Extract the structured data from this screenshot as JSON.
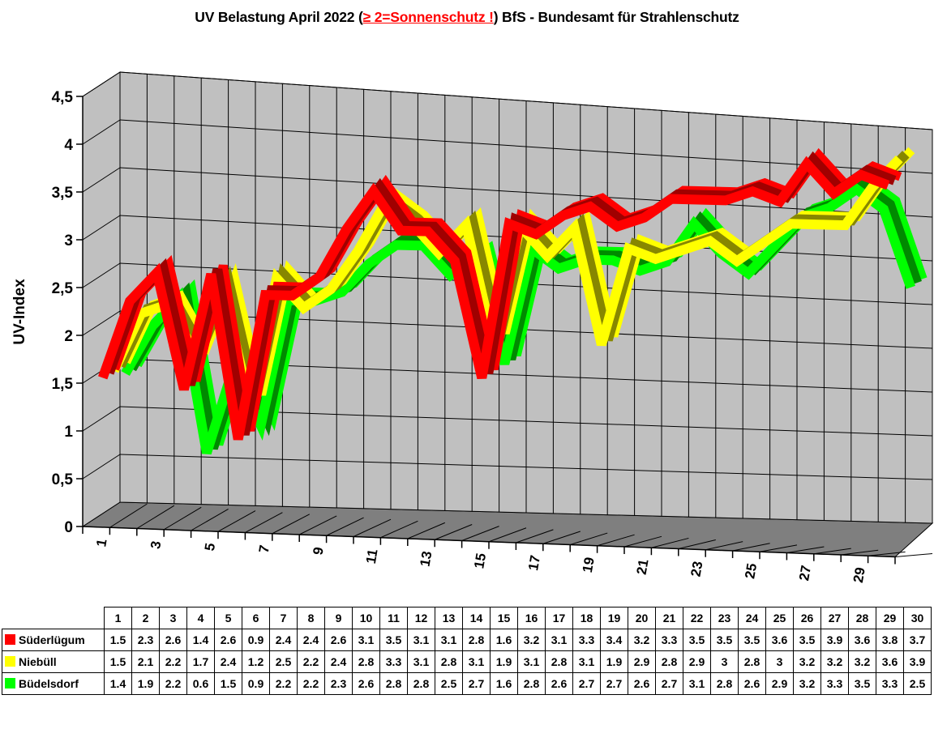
{
  "title": {
    "part1": "UV Belastung April 2022 (",
    "part2": "≥ 2=Sonnenschutz !",
    "part3": ") BfS - Bundesamt für Strahlenschutz",
    "highlight_color": "#FF0000"
  },
  "chart_data": {
    "type": "line3d",
    "title": "UV Belastung April 2022",
    "ylabel": "UV-Index",
    "xlabel": "",
    "ylim": [
      0,
      4.5
    ],
    "ytick_step": 0.5,
    "ytick_labels": [
      "0",
      "0,5",
      "1",
      "1,5",
      "2",
      "2,5",
      "3",
      "3,5",
      "4",
      "4,5"
    ],
    "xtick_labels": [
      "1",
      "3",
      "5",
      "7",
      "9",
      "11",
      "13",
      "15",
      "17",
      "19",
      "21",
      "23",
      "25",
      "27",
      "29"
    ],
    "categories": [
      1,
      2,
      3,
      4,
      5,
      6,
      7,
      8,
      9,
      10,
      11,
      12,
      13,
      14,
      15,
      16,
      17,
      18,
      19,
      20,
      21,
      22,
      23,
      24,
      25,
      26,
      27,
      28,
      29,
      30
    ],
    "grid": true,
    "legend_position": "none",
    "wall_color": "#C0C0C0",
    "floor_color": "#7F7F7F",
    "grid_color": "#000000",
    "series": [
      {
        "name": "Süderlügum",
        "color": "#FF0000",
        "dark_color": "#A00000",
        "values": [
          1.5,
          2.3,
          2.6,
          1.4,
          2.6,
          0.9,
          2.4,
          2.4,
          2.6,
          3.1,
          3.5,
          3.1,
          3.1,
          2.8,
          1.6,
          3.2,
          3.1,
          3.3,
          3.4,
          3.2,
          3.3,
          3.5,
          3.5,
          3.5,
          3.6,
          3.5,
          3.9,
          3.6,
          3.8,
          3.7
        ]
      },
      {
        "name": "Niebüll",
        "color": "#FFFF00",
        "dark_color": "#878700",
        "values": [
          1.5,
          2.1,
          2.2,
          1.7,
          2.4,
          1.2,
          2.5,
          2.2,
          2.4,
          2.8,
          3.3,
          3.1,
          2.8,
          3.1,
          1.9,
          3.1,
          2.8,
          3.1,
          1.9,
          2.9,
          2.8,
          2.9,
          3.0,
          2.8,
          3.0,
          3.2,
          3.2,
          3.2,
          3.6,
          3.9
        ]
      },
      {
        "name": "Büdelsdorf",
        "color": "#00FF00",
        "dark_color": "#008A00",
        "values": [
          1.4,
          1.9,
          2.2,
          0.6,
          1.5,
          0.9,
          2.2,
          2.2,
          2.3,
          2.6,
          2.8,
          2.8,
          2.5,
          2.7,
          1.6,
          2.8,
          2.6,
          2.7,
          2.7,
          2.6,
          2.7,
          3.1,
          2.8,
          2.6,
          2.9,
          3.2,
          3.3,
          3.5,
          3.3,
          2.5
        ]
      }
    ]
  },
  "table": {
    "day_header": [
      "1",
      "2",
      "3",
      "4",
      "5",
      "6",
      "7",
      "8",
      "9",
      "10",
      "11",
      "12",
      "13",
      "14",
      "15",
      "16",
      "17",
      "18",
      "19",
      "20",
      "21",
      "22",
      "23",
      "24",
      "25",
      "26",
      "27",
      "28",
      "29",
      "30"
    ],
    "rows": [
      {
        "label": "Süderlügum",
        "swatch_color": "#FF0000",
        "values": [
          "1.5",
          "2.3",
          "2.6",
          "1.4",
          "2.6",
          "0.9",
          "2.4",
          "2.4",
          "2.6",
          "3.1",
          "3.5",
          "3.1",
          "3.1",
          "2.8",
          "1.6",
          "3.2",
          "3.1",
          "3.3",
          "3.4",
          "3.2",
          "3.3",
          "3.5",
          "3.5",
          "3.5",
          "3.6",
          "3.5",
          "3.9",
          "3.6",
          "3.8",
          "3.7"
        ]
      },
      {
        "label": "Niebüll",
        "swatch_color": "#FFFF00",
        "values": [
          "1.5",
          "2.1",
          "2.2",
          "1.7",
          "2.4",
          "1.2",
          "2.5",
          "2.2",
          "2.4",
          "2.8",
          "3.3",
          "3.1",
          "2.8",
          "3.1",
          "1.9",
          "3.1",
          "2.8",
          "3.1",
          "1.9",
          "2.9",
          "2.8",
          "2.9",
          "3",
          "2.8",
          "3",
          "3.2",
          "3.2",
          "3.2",
          "3.6",
          "3.9"
        ]
      },
      {
        "label": "Büdelsdorf",
        "swatch_color": "#00FF00",
        "values": [
          "1.4",
          "1.9",
          "2.2",
          "0.6",
          "1.5",
          "0.9",
          "2.2",
          "2.2",
          "2.3",
          "2.6",
          "2.8",
          "2.8",
          "2.5",
          "2.7",
          "1.6",
          "2.8",
          "2.6",
          "2.7",
          "2.7",
          "2.6",
          "2.7",
          "3.1",
          "2.8",
          "2.6",
          "2.9",
          "3.2",
          "3.3",
          "3.5",
          "3.3",
          "2.5"
        ]
      }
    ]
  }
}
